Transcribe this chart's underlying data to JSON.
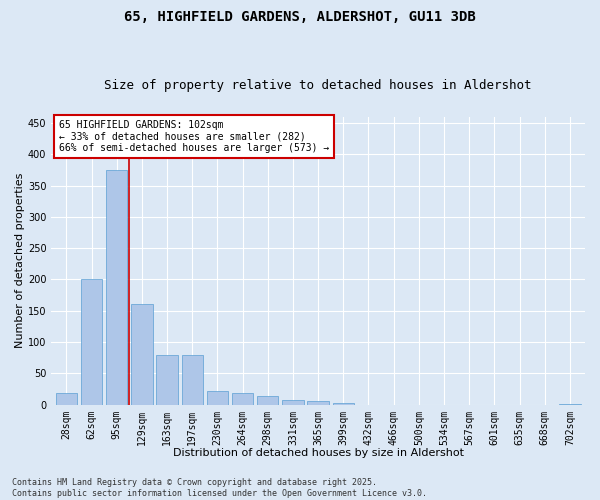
{
  "title": "65, HIGHFIELD GARDENS, ALDERSHOT, GU11 3DB",
  "subtitle": "Size of property relative to detached houses in Aldershot",
  "xlabel": "Distribution of detached houses by size in Aldershot",
  "ylabel": "Number of detached properties",
  "categories": [
    "28sqm",
    "62sqm",
    "95sqm",
    "129sqm",
    "163sqm",
    "197sqm",
    "230sqm",
    "264sqm",
    "298sqm",
    "331sqm",
    "365sqm",
    "399sqm",
    "432sqm",
    "466sqm",
    "500sqm",
    "534sqm",
    "567sqm",
    "601sqm",
    "635sqm",
    "668sqm",
    "702sqm"
  ],
  "values": [
    18,
    200,
    375,
    160,
    80,
    80,
    22,
    18,
    13,
    7,
    5,
    2,
    0,
    0,
    0,
    0,
    0,
    0,
    0,
    0,
    1
  ],
  "bar_color": "#aec6e8",
  "bar_edge_color": "#5a9fd4",
  "bar_width": 0.85,
  "ylim": [
    0,
    460
  ],
  "yticks": [
    0,
    50,
    100,
    150,
    200,
    250,
    300,
    350,
    400,
    450
  ],
  "red_line_x": 2.5,
  "annotation_text": "65 HIGHFIELD GARDENS: 102sqm\n← 33% of detached houses are smaller (282)\n66% of semi-detached houses are larger (573) →",
  "annotation_box_color": "#ffffff",
  "annotation_border_color": "#cc0000",
  "footer_text": "Contains HM Land Registry data © Crown copyright and database right 2025.\nContains public sector information licensed under the Open Government Licence v3.0.",
  "background_color": "#dce8f5",
  "plot_background_color": "#dce8f5",
  "grid_color": "#ffffff",
  "title_fontsize": 10,
  "subtitle_fontsize": 9,
  "axis_label_fontsize": 8,
  "tick_fontsize": 7,
  "annotation_fontsize": 7,
  "footer_fontsize": 6
}
